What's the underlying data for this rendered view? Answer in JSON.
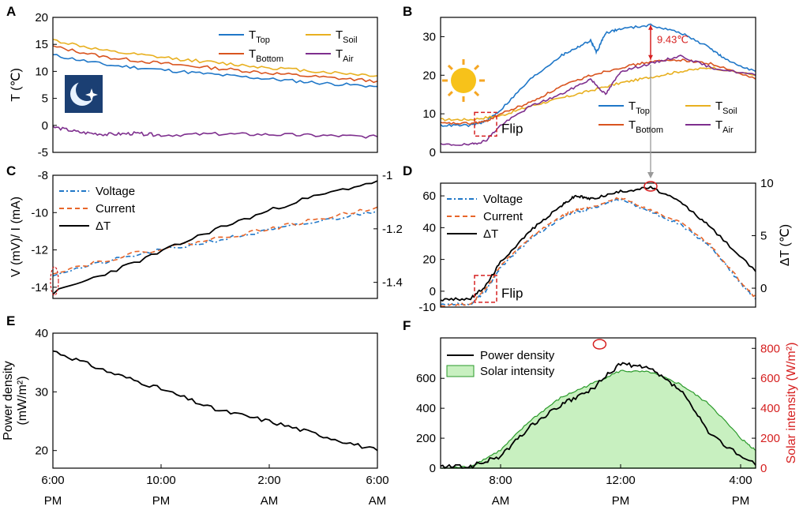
{
  "chart_data": [
    {
      "id": "A",
      "panel_label": "A",
      "type": "line",
      "ylabel": "T (℃)",
      "ylim": [
        -5,
        20
      ],
      "yticks": [
        -5,
        0,
        5,
        10,
        15,
        20
      ],
      "xlim": [
        0,
        12
      ],
      "icon": "night-moon-icon",
      "legend": [
        {
          "main": "T",
          "sub": "Top",
          "color": "#1f77c8"
        },
        {
          "main": "T",
          "sub": "Soil",
          "color": "#e8b020"
        },
        {
          "main": "T",
          "sub": "Bottom",
          "color": "#d9541f"
        },
        {
          "main": "T",
          "sub": "Air",
          "color": "#7e2f8e"
        }
      ],
      "series": [
        {
          "name": "T_Top",
          "color": "#1f77c8",
          "x": [
            0,
            2,
            4,
            6,
            8,
            10,
            12
          ],
          "y": [
            13,
            11.2,
            10.3,
            9.4,
            8.6,
            7.8,
            7.2
          ]
        },
        {
          "name": "T_Soil",
          "color": "#e8b020",
          "x": [
            0,
            2,
            4,
            6,
            8,
            10,
            12
          ],
          "y": [
            15.8,
            13.7,
            12.6,
            11.6,
            10.7,
            9.9,
            9.2
          ]
        },
        {
          "name": "T_Bottom",
          "color": "#d9541f",
          "x": [
            0,
            2,
            4,
            6,
            8,
            10,
            12
          ],
          "y": [
            14.6,
            12.6,
            11.5,
            10.6,
            9.7,
            8.9,
            8.2
          ]
        },
        {
          "name": "T_Air",
          "color": "#7e2f8e",
          "x": [
            0,
            1,
            2,
            3,
            4,
            6,
            8,
            10,
            12
          ],
          "y": [
            -0.3,
            -1.3,
            -1.7,
            -1.5,
            -1.8,
            -1.6,
            -1.7,
            -1.9,
            -2.1
          ]
        }
      ]
    },
    {
      "id": "B",
      "panel_label": "B",
      "type": "line",
      "ylim": [
        0,
        35
      ],
      "yticks": [
        0,
        10,
        20,
        30
      ],
      "xlim": [
        6,
        16.5
      ],
      "icon": "sun-icon",
      "annotation": "9.43℃",
      "flip_label": "Flip",
      "legend": [
        {
          "main": "T",
          "sub": "Top",
          "color": "#1f77c8"
        },
        {
          "main": "T",
          "sub": "Soil",
          "color": "#e8b020"
        },
        {
          "main": "T",
          "sub": "Bottom",
          "color": "#d9541f"
        },
        {
          "main": "T",
          "sub": "Air",
          "color": "#7e2f8e"
        }
      ],
      "series": [
        {
          "name": "T_Top",
          "color": "#1f77c8",
          "x": [
            6,
            7,
            7.5,
            8,
            9,
            10,
            10.5,
            11,
            11.2,
            11.5,
            12,
            13,
            14,
            15,
            15.5,
            16.5
          ],
          "y": [
            7,
            7,
            8,
            11,
            19,
            25,
            27,
            29,
            26,
            31,
            32,
            33,
            31,
            27,
            24,
            21
          ]
        },
        {
          "name": "T_Soil",
          "color": "#e8b020",
          "x": [
            6,
            7,
            8,
            9,
            10,
            11,
            12,
            13,
            14,
            15,
            16.5
          ],
          "y": [
            8.5,
            8.5,
            9.5,
            12,
            14,
            16,
            18,
            19.5,
            21,
            22,
            20
          ]
        },
        {
          "name": "T_Bottom",
          "color": "#d9541f",
          "x": [
            6,
            7,
            7.5,
            8,
            9,
            10,
            11,
            12,
            13,
            14,
            15,
            16.5
          ],
          "y": [
            7.5,
            7.5,
            8,
            10,
            13,
            17,
            20,
            22,
            23.5,
            24,
            23,
            19
          ]
        },
        {
          "name": "T_Air",
          "color": "#7e2f8e",
          "x": [
            6,
            7,
            7.5,
            8,
            9,
            10,
            11,
            11.5,
            12,
            13,
            14,
            15,
            16.5
          ],
          "y": [
            2,
            2,
            3,
            7,
            12,
            15,
            19,
            15,
            21,
            23,
            25,
            22,
            20
          ]
        }
      ]
    },
    {
      "id": "C",
      "panel_label": "C",
      "type": "line",
      "ylabel": "V (mV)/ I (mA)",
      "ylim": [
        -14.6,
        -8
      ],
      "yticks": [
        -14,
        -12,
        -10,
        -8
      ],
      "y2lim": [
        -1.46,
        -1.0
      ],
      "y2ticks": [
        -1.4,
        -1.2,
        -1.0
      ],
      "y2ticklabels": [
        "-1.4",
        "-1.2",
        "-1"
      ],
      "xlim": [
        0,
        12
      ],
      "legend": [
        {
          "label": "Voltage",
          "color": "#1f77c8",
          "dash": "6,3,2,3"
        },
        {
          "label": "Current",
          "color": "#e8662a",
          "dash": "6,4"
        },
        {
          "label": "ΔT",
          "color": "#000000",
          "dash": ""
        }
      ],
      "series": [
        {
          "name": "Voltage",
          "color": "#1f77c8",
          "dash": "6,3,2,3",
          "x": [
            0,
            3,
            6,
            9,
            12
          ],
          "y": [
            -13.3,
            -12.3,
            -11.5,
            -10.7,
            -9.9
          ]
        },
        {
          "name": "Current",
          "color": "#e8662a",
          "dash": "6,4",
          "x": [
            0,
            3,
            6,
            9,
            12
          ],
          "y": [
            -13.2,
            -12.2,
            -11.4,
            -10.6,
            -9.7
          ]
        },
        {
          "name": "ΔT",
          "color": "#000000",
          "dash": "",
          "x": [
            0,
            3,
            6,
            9,
            12
          ],
          "y": [
            -14.3,
            -12.7,
            -10.9,
            -9.4,
            -8.3
          ]
        }
      ]
    },
    {
      "id": "D",
      "panel_label": "D",
      "type": "line",
      "ylim": [
        -10,
        68
      ],
      "yticks": [
        -10,
        0,
        20,
        40,
        60
      ],
      "y2label": "ΔT (℃)",
      "y2lim": [
        -1.8,
        10
      ],
      "y2ticks": [
        0,
        5,
        10
      ],
      "xlim": [
        6,
        16.5
      ],
      "flip_label": "Flip",
      "legend": [
        {
          "label": "Voltage",
          "color": "#1f77c8",
          "dash": "6,3,2,3"
        },
        {
          "label": "Current",
          "color": "#e8662a",
          "dash": "6,4"
        },
        {
          "label": "ΔT",
          "color": "#000000",
          "dash": ""
        }
      ],
      "series": [
        {
          "name": "Voltage",
          "color": "#1f77c8",
          "dash": "6,3,2,3",
          "x": [
            6,
            7,
            7.5,
            8,
            9,
            10,
            10.5,
            11,
            12,
            13,
            14,
            15,
            16,
            16.5
          ],
          "y": [
            -8,
            -8,
            0,
            15,
            33,
            46,
            50,
            52,
            58,
            50,
            42,
            28,
            5,
            -5
          ]
        },
        {
          "name": "Current",
          "color": "#e8662a",
          "dash": "6,4",
          "x": [
            6,
            7,
            7.5,
            8,
            9,
            10,
            10.5,
            11,
            12,
            13,
            14,
            15,
            16,
            16.5
          ],
          "y": [
            -9,
            -8,
            1,
            16,
            34,
            47,
            51,
            53,
            59,
            51,
            43,
            29,
            6,
            -4
          ]
        },
        {
          "name": "ΔT",
          "color": "#000000",
          "dash": "",
          "x": [
            6,
            7,
            7.5,
            8,
            9,
            10,
            10.5,
            11,
            12,
            13,
            14,
            15,
            16.5
          ],
          "y": [
            -1.1,
            -1,
            0.2,
            2.5,
            5.5,
            7.8,
            8.8,
            8.5,
            9.2,
            9.6,
            8.2,
            5.8,
            1.6
          ]
        }
      ]
    },
    {
      "id": "E",
      "panel_label": "E",
      "type": "line",
      "ylabel": "Power density",
      "ylabel2": "(mW/m²)",
      "ylim": [
        17,
        40
      ],
      "yticks": [
        20,
        30,
        40
      ],
      "xlim": [
        0,
        12
      ],
      "xticks": [
        0,
        4,
        8,
        12
      ],
      "xticklabels": [
        [
          "6:00",
          "PM"
        ],
        [
          "10:00",
          "PM"
        ],
        [
          "2:00",
          "AM"
        ],
        [
          "6:00",
          "AM"
        ]
      ],
      "series": [
        {
          "name": "Power density",
          "color": "#000000",
          "x": [
            0,
            2,
            4,
            6,
            8,
            10,
            12
          ],
          "y": [
            37,
            33.5,
            30.5,
            27,
            25,
            22.5,
            20
          ]
        }
      ]
    },
    {
      "id": "F",
      "panel_label": "F",
      "type": "line",
      "ylim": [
        0,
        870
      ],
      "yticks": [
        0,
        200,
        400,
        600
      ],
      "y2label": "Solar intensity (W/m²)",
      "y2lim": [
        0,
        870
      ],
      "y2ticks": [
        0,
        200,
        400,
        600,
        800
      ],
      "xlim": [
        6,
        16.5
      ],
      "xticks": [
        8,
        12,
        16
      ],
      "xticklabels": [
        [
          "8:00",
          "AM"
        ],
        [
          "12:00",
          "PM"
        ],
        [
          "4:00",
          "PM"
        ]
      ],
      "legend": [
        {
          "label": "Power density",
          "color": "#000000",
          "kind": "line"
        },
        {
          "label": "Solar intensity",
          "color": "#c8f0c0",
          "kind": "area"
        }
      ],
      "series": [
        {
          "name": "Power density",
          "color": "#000000",
          "x": [
            6,
            7,
            8,
            9,
            10,
            11,
            12,
            13,
            14,
            15,
            16.5
          ],
          "y": [
            10,
            10,
            80,
            280,
            420,
            520,
            700,
            660,
            520,
            220,
            20
          ]
        },
        {
          "name": "Solar intensity",
          "color": "#2a9a2a",
          "x": [
            6,
            7,
            8,
            9,
            10,
            11,
            12,
            13,
            14,
            15,
            16,
            16.5
          ],
          "y": [
            0,
            10,
            120,
            320,
            470,
            560,
            650,
            640,
            560,
            420,
            200,
            120
          ]
        }
      ]
    }
  ]
}
